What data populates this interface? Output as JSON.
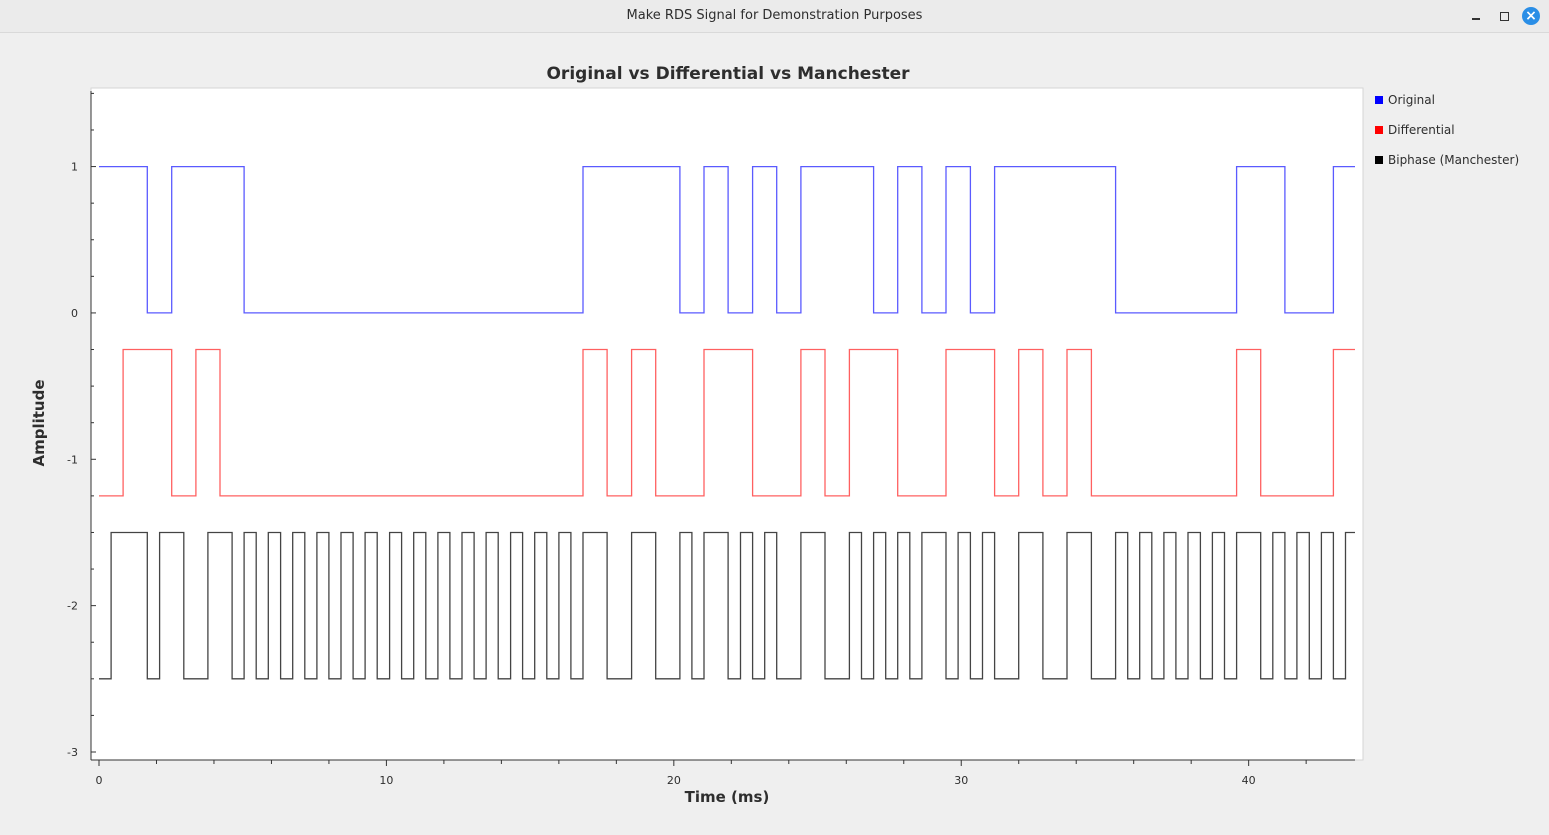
{
  "window": {
    "title": "Make RDS Signal for Demonstration Purposes",
    "controls": {
      "minimize": "minimize",
      "maximize": "maximize",
      "close": "×"
    }
  },
  "chart_data": {
    "type": "line",
    "title": "Original vs Differential vs Manchester",
    "xlabel": "Time (ms)",
    "ylabel": "Amplitude",
    "xlim": [
      0,
      43.7
    ],
    "ylim": [
      -3,
      1.53
    ],
    "x_ticks": [
      0,
      10,
      20,
      30,
      40
    ],
    "y_ticks": [
      1,
      0,
      -1,
      -2,
      -3
    ],
    "legend_position": "right",
    "series": [
      {
        "name": "Original",
        "color": "#5a5aff",
        "legend_color": "#0000ff",
        "x": [
          0,
          1.68,
          1.68,
          2.53,
          2.53,
          5.05,
          5.05,
          16.84,
          16.84,
          20.21,
          20.21,
          21.05,
          21.05,
          21.89,
          21.89,
          22.74,
          22.74,
          23.58,
          23.58,
          24.42,
          24.42,
          26.95,
          26.95,
          27.79,
          27.79,
          28.63,
          28.63,
          29.47,
          29.47,
          30.32,
          30.32,
          31.16,
          31.16,
          35.37,
          35.37,
          39.58,
          39.58,
          41.26,
          41.26,
          42.95,
          42.95,
          43.7
        ],
        "y": [
          1,
          1,
          0,
          0,
          1,
          1,
          0,
          0,
          1,
          1,
          0,
          0,
          1,
          1,
          0,
          0,
          1,
          1,
          0,
          0,
          1,
          1,
          0,
          0,
          1,
          1,
          0,
          0,
          1,
          1,
          0,
          0,
          1,
          1,
          0,
          0,
          1,
          1,
          0,
          0,
          1,
          1
        ]
      },
      {
        "name": "Differential",
        "color": "#ff6060",
        "legend_color": "#ff0000",
        "x": [
          0,
          0.84,
          0.84,
          2.53,
          2.53,
          3.37,
          3.37,
          4.21,
          4.21,
          16.84,
          16.84,
          17.68,
          17.68,
          18.53,
          18.53,
          19.37,
          19.37,
          21.05,
          21.05,
          22.74,
          22.74,
          24.42,
          24.42,
          25.26,
          25.26,
          26.11,
          26.11,
          27.79,
          27.79,
          29.47,
          29.47,
          31.16,
          31.16,
          32.0,
          32.0,
          32.84,
          32.84,
          33.68,
          33.68,
          34.53,
          34.53,
          39.58,
          39.58,
          40.42,
          40.42,
          42.95,
          42.95,
          43.7
        ],
        "y": [
          -1.25,
          -1.25,
          -0.25,
          -0.25,
          -1.25,
          -1.25,
          -0.25,
          -0.25,
          -1.25,
          -1.25,
          -0.25,
          -0.25,
          -1.25,
          -1.25,
          -0.25,
          -0.25,
          -1.25,
          -1.25,
          -0.25,
          -0.25,
          -1.25,
          -1.25,
          -0.25,
          -0.25,
          -1.25,
          -1.25,
          -0.25,
          -0.25,
          -1.25,
          -1.25,
          -0.25,
          -0.25,
          -1.25,
          -1.25,
          -0.25,
          -0.25,
          -1.25,
          -1.25,
          -0.25,
          -0.25,
          -1.25,
          -1.25,
          -0.25,
          -0.25,
          -1.25,
          -1.25,
          -0.25,
          -0.25
        ]
      },
      {
        "name": "Biphase (Manchester)",
        "color": "#444444",
        "legend_color": "#000000",
        "levels": [
          -2.5,
          -1.5
        ],
        "edges": [
          0.42,
          1.68,
          2.11,
          2.95,
          3.79,
          4.63,
          5.05,
          5.47,
          5.89,
          6.32,
          6.74,
          7.16,
          7.58,
          8.0,
          8.42,
          8.84,
          9.26,
          9.68,
          10.11,
          10.53,
          10.95,
          11.37,
          11.79,
          12.21,
          12.63,
          13.05,
          13.47,
          13.89,
          14.32,
          14.74,
          15.16,
          15.58,
          16.0,
          16.42,
          16.84,
          17.68,
          18.53,
          19.37,
          20.21,
          20.63,
          21.05,
          21.89,
          22.32,
          22.74,
          23.16,
          23.58,
          24.42,
          25.26,
          26.11,
          26.53,
          26.95,
          27.37,
          27.79,
          28.21,
          28.63,
          29.47,
          29.89,
          30.32,
          30.74,
          31.16,
          32.0,
          32.84,
          33.68,
          34.53,
          35.37,
          35.79,
          36.21,
          36.63,
          37.05,
          37.47,
          37.89,
          38.32,
          38.74,
          39.16,
          39.58,
          40.42,
          40.84,
          41.26,
          41.68,
          42.11,
          42.53,
          42.95,
          43.37
        ],
        "x_end": 43.7
      }
    ]
  }
}
